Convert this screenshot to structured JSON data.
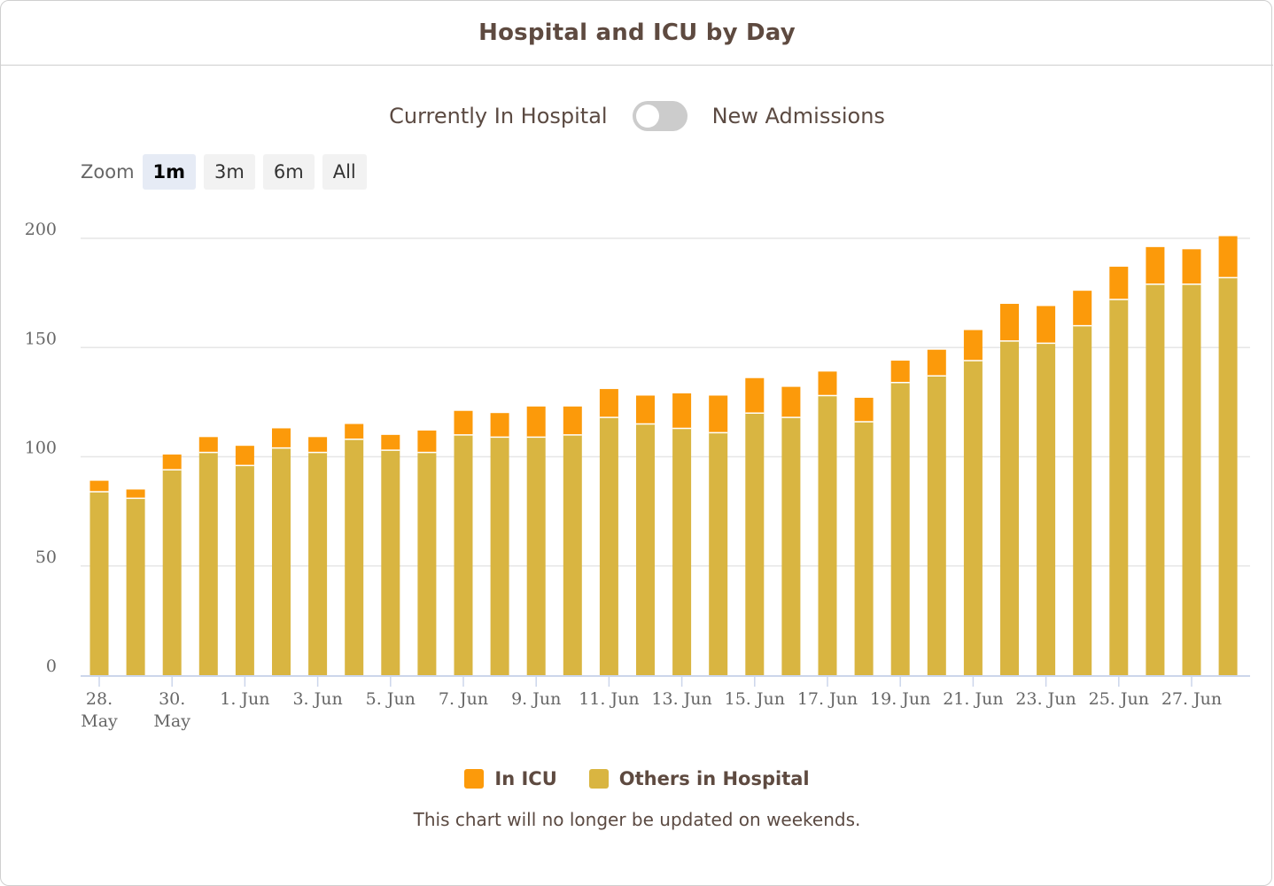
{
  "card": {
    "title": "Hospital and ICU by Day"
  },
  "toggle": {
    "left_label": "Currently In Hospital",
    "right_label": "New Admissions",
    "state": "off"
  },
  "zoom": {
    "label": "Zoom",
    "buttons": [
      "1m",
      "3m",
      "6m",
      "All"
    ],
    "active": "1m"
  },
  "colors": {
    "icu": "#fc9a0a",
    "others": "#d9b541",
    "grid": "#e6e6e6",
    "axis": "#ccd6eb"
  },
  "legend": {
    "items": [
      {
        "label": "In ICU",
        "color": "#fc9a0a"
      },
      {
        "label": "Others in Hospital",
        "color": "#d9b541"
      }
    ]
  },
  "footnote": "This chart will no longer be updated on weekends.",
  "chart_data": {
    "type": "bar",
    "stacked": true,
    "ylim": [
      0,
      200
    ],
    "yticks": [
      0,
      50,
      100,
      150,
      200
    ],
    "grid": true,
    "legend_position": "bottom",
    "x_tick_labels": [
      {
        "day": "28. May",
        "lines": [
          "28.",
          "May"
        ]
      },
      {
        "day": "30. May",
        "lines": [
          "30.",
          "May"
        ]
      },
      {
        "day": "1. Jun",
        "lines": [
          "1. Jun"
        ]
      },
      {
        "day": "3. Jun",
        "lines": [
          "3. Jun"
        ]
      },
      {
        "day": "5. Jun",
        "lines": [
          "5. Jun"
        ]
      },
      {
        "day": "7. Jun",
        "lines": [
          "7. Jun"
        ]
      },
      {
        "day": "9. Jun",
        "lines": [
          "9. Jun"
        ]
      },
      {
        "day": "11. Jun",
        "lines": [
          "11. Jun"
        ]
      },
      {
        "day": "13. Jun",
        "lines": [
          "13. Jun"
        ]
      },
      {
        "day": "15. Jun",
        "lines": [
          "15. Jun"
        ]
      },
      {
        "day": "17. Jun",
        "lines": [
          "17. Jun"
        ]
      },
      {
        "day": "19. Jun",
        "lines": [
          "19. Jun"
        ]
      },
      {
        "day": "21. Jun",
        "lines": [
          "21. Jun"
        ]
      },
      {
        "day": "23. Jun",
        "lines": [
          "23. Jun"
        ]
      },
      {
        "day": "25. Jun",
        "lines": [
          "25. Jun"
        ]
      },
      {
        "day": "27. Jun",
        "lines": [
          "27. Jun"
        ]
      }
    ],
    "categories": [
      "28. May",
      "29. May",
      "30. May",
      "31. May",
      "1. Jun",
      "2. Jun",
      "3. Jun",
      "4. Jun",
      "5. Jun",
      "6. Jun",
      "7. Jun",
      "8. Jun",
      "9. Jun",
      "10. Jun",
      "11. Jun",
      "12. Jun",
      "13. Jun",
      "14. Jun",
      "15. Jun",
      "16. Jun",
      "17. Jun",
      "18. Jun",
      "19. Jun",
      "20. Jun",
      "21. Jun",
      "22. Jun",
      "23. Jun",
      "24. Jun",
      "25. Jun",
      "26. Jun",
      "27. Jun",
      "28. Jun"
    ],
    "series": [
      {
        "name": "Others in Hospital",
        "color": "#d9b541",
        "values": [
          84,
          81,
          94,
          102,
          96,
          104,
          102,
          108,
          103,
          102,
          110,
          109,
          109,
          110,
          118,
          115,
          113,
          111,
          120,
          118,
          128,
          116,
          134,
          137,
          144,
          153,
          152,
          160,
          172,
          179,
          179,
          182
        ]
      },
      {
        "name": "In ICU",
        "color": "#fc9a0a",
        "values": [
          5,
          4,
          7,
          7,
          9,
          9,
          7,
          7,
          7,
          10,
          11,
          11,
          14,
          13,
          13,
          13,
          16,
          17,
          16,
          14,
          11,
          11,
          10,
          12,
          14,
          17,
          17,
          16,
          15,
          17,
          16,
          19
        ]
      }
    ]
  }
}
